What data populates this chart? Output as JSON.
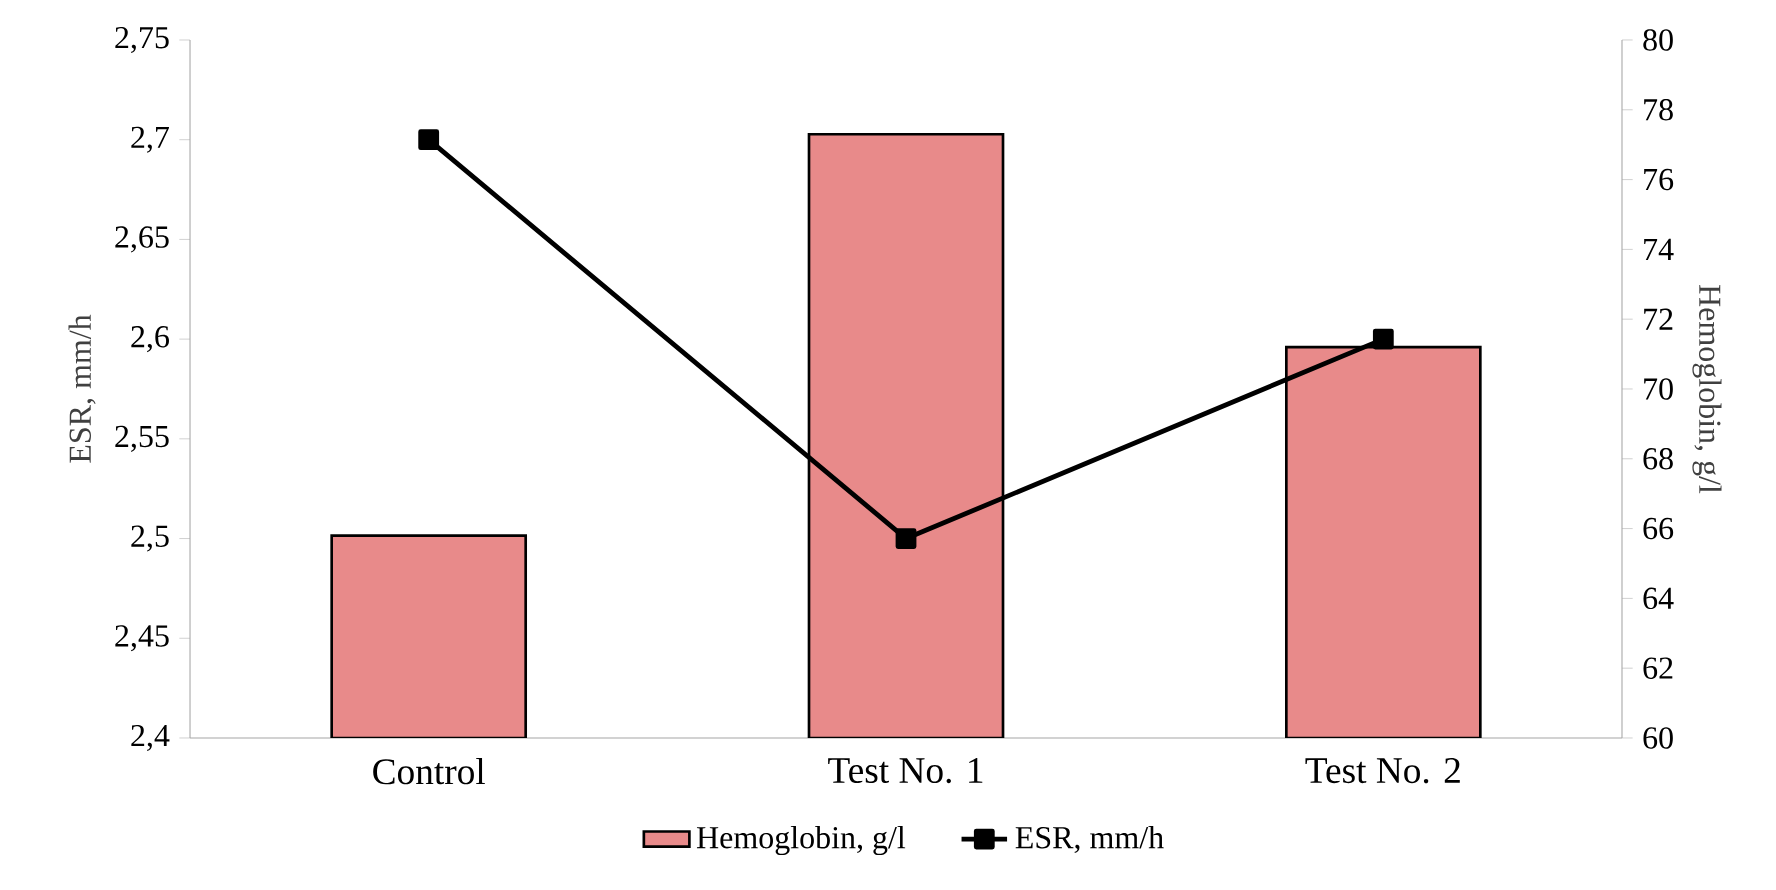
{
  "chart_data": {
    "type": "bar",
    "categories": [
      "Control",
      "Test No. 1",
      "Test No. 2"
    ],
    "series": [
      {
        "name": "Hemoglobin, g/l",
        "axis": "y2",
        "color": "#e88a8a",
        "values": [
          65.8,
          77.3,
          71.2
        ]
      },
      {
        "name": "ESR, mm/h",
        "type": "line",
        "color": "#000000",
        "marker": "square",
        "values": [
          2.7,
          2.5,
          2.6
        ]
      }
    ],
    "ylabel": "ESR, mm/h",
    "y2label": "Hemoglobin, g/l",
    "ylim": [
      2.4,
      2.75
    ],
    "yticks": [
      {
        "value": 2.4,
        "label": "2,4"
      },
      {
        "value": 2.45,
        "label": "2,45"
      },
      {
        "value": 2.5,
        "label": "2,5"
      },
      {
        "value": 2.55,
        "label": "2,55"
      },
      {
        "value": 2.6,
        "label": "2,6"
      },
      {
        "value": 2.65,
        "label": "2,65"
      },
      {
        "value": 2.7,
        "label": "2,7"
      },
      {
        "value": 2.75,
        "label": "2,75"
      }
    ],
    "y2lim": [
      60,
      80
    ],
    "y2ticks": [
      60,
      62,
      64,
      66,
      68,
      70,
      72,
      74,
      76,
      78,
      80
    ],
    "legend": "bottom",
    "grid": false
  }
}
